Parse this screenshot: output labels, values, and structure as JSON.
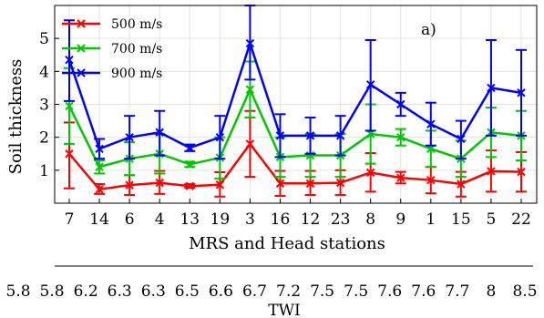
{
  "chart_data": {
    "type": "line",
    "panel_label": "a)",
    "xlabel": "MRS and Head stations",
    "ylabel": "Soil thickness",
    "secondary_xlabel": "TWI",
    "categories": [
      "7",
      "14",
      "6",
      "4",
      "13",
      "19",
      "3",
      "16",
      "12",
      "23",
      "8",
      "9",
      "1",
      "15",
      "5",
      "22"
    ],
    "twi_labels": [
      "5.8",
      "5.8",
      "6.2",
      "6.3",
      "6.3",
      "6.5",
      "6.6",
      "6.7",
      "7.2",
      "7.5",
      "7.5",
      "7.6",
      "7.6",
      "7.7",
      "8",
      "8.5"
    ],
    "ylim": [
      0,
      6
    ],
    "yticks": [
      1,
      2,
      3,
      4,
      5
    ],
    "grid": true,
    "legend_position": "top-left",
    "series": [
      {
        "name": "500 m/s",
        "color": "#ff0000",
        "values": [
          1.5,
          0.42,
          0.55,
          0.62,
          0.52,
          0.56,
          1.8,
          0.6,
          0.6,
          0.62,
          0.93,
          0.77,
          0.7,
          0.58,
          0.97,
          0.95
        ],
        "lower": [
          0.45,
          0.28,
          0.25,
          0.28,
          0.47,
          0.2,
          0.8,
          0.22,
          0.25,
          0.25,
          0.35,
          0.6,
          0.3,
          0.2,
          0.35,
          0.35
        ],
        "upper": [
          2.45,
          0.58,
          0.85,
          0.98,
          0.58,
          0.94,
          2.8,
          0.98,
          0.98,
          1.0,
          1.52,
          0.95,
          1.1,
          0.95,
          1.6,
          1.55
        ]
      },
      {
        "name": "700 m/s",
        "color": "#00c800",
        "values": [
          2.95,
          1.1,
          1.35,
          1.5,
          1.18,
          1.38,
          3.45,
          1.4,
          1.45,
          1.45,
          2.1,
          2.0,
          1.65,
          1.35,
          2.15,
          2.05
        ],
        "lower": [
          1.8,
          0.9,
          0.85,
          0.9,
          1.1,
          0.75,
          2.6,
          0.8,
          0.8,
          0.8,
          1.2,
          1.75,
          1.1,
          0.8,
          1.4,
          1.3
        ],
        "upper": [
          4.1,
          1.3,
          1.85,
          2.1,
          1.26,
          2.0,
          4.3,
          2.0,
          2.1,
          2.1,
          3.0,
          2.25,
          2.2,
          1.9,
          2.9,
          2.8
        ]
      },
      {
        "name": "900 m/s",
        "color": "#0000ff",
        "values": [
          4.35,
          1.65,
          2.0,
          2.15,
          1.68,
          2.0,
          4.85,
          2.05,
          2.05,
          2.05,
          3.6,
          3.0,
          2.4,
          1.95,
          3.5,
          3.35
        ],
        "lower": [
          3.1,
          1.35,
          1.35,
          1.45,
          1.58,
          1.35,
          3.75,
          1.4,
          1.5,
          1.45,
          2.2,
          2.65,
          1.75,
          1.35,
          2.05,
          2.05
        ],
        "upper": [
          5.55,
          1.95,
          2.65,
          2.8,
          1.78,
          2.65,
          6.0,
          2.7,
          2.6,
          2.65,
          4.95,
          3.35,
          3.05,
          2.5,
          4.95,
          4.65
        ]
      }
    ]
  }
}
